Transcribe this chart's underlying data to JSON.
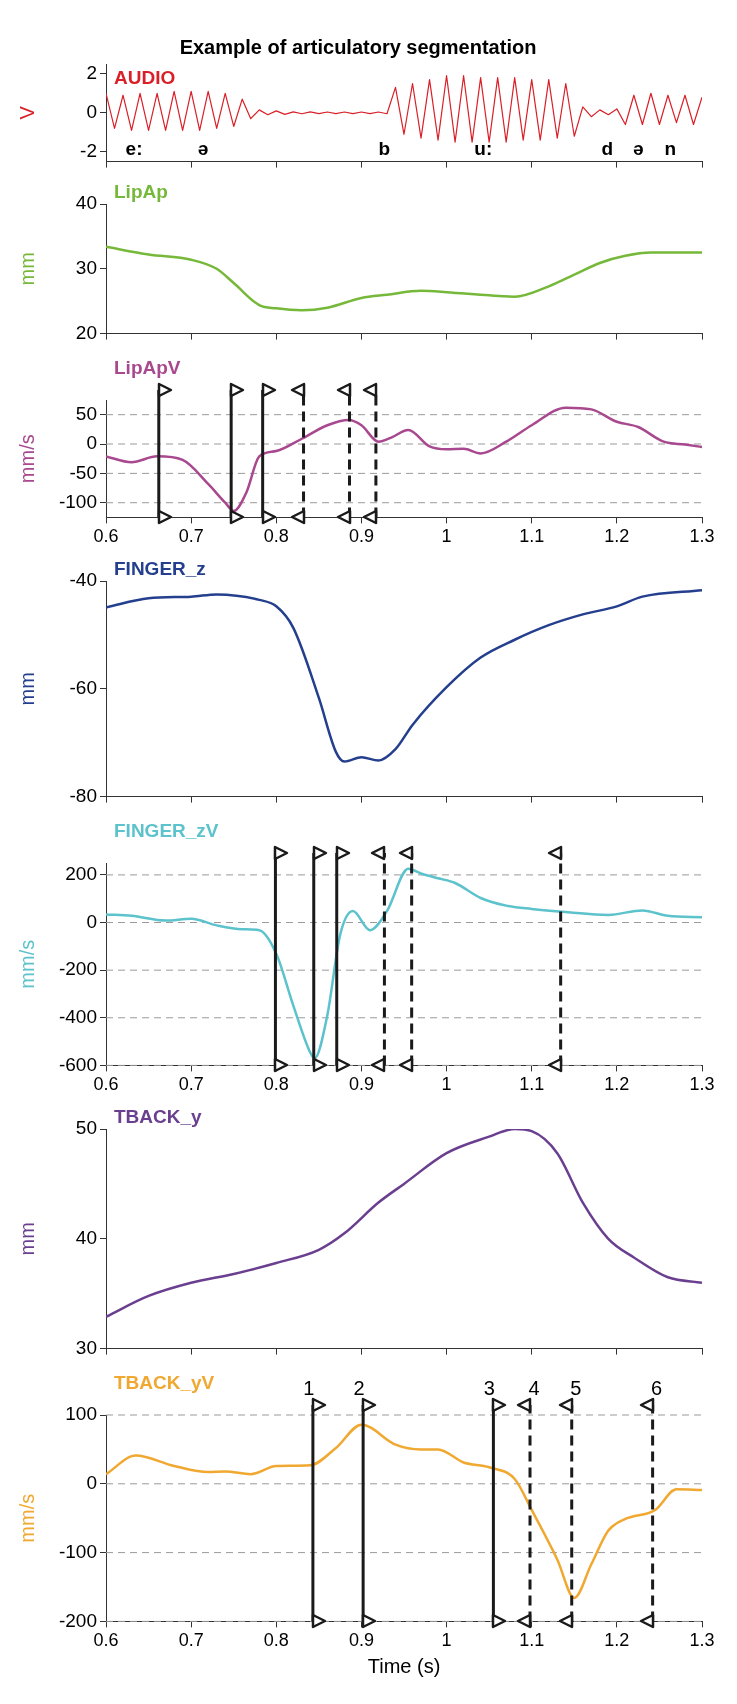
{
  "chart_data": [
    {
      "type": "line",
      "title": "Example of articulatory segmentation",
      "ylabel": "V",
      "tick_labels": "y",
      "grid": false,
      "legend": false,
      "x": [
        0.6,
        0.61,
        0.62,
        0.63,
        0.64,
        0.65,
        0.66,
        0.67,
        0.68,
        0.69,
        0.7,
        0.71,
        0.72,
        0.73,
        0.74,
        0.75,
        0.76,
        0.77,
        0.78,
        0.79,
        0.8,
        0.81,
        0.82,
        0.83,
        0.84,
        0.85,
        0.86,
        0.87,
        0.88,
        0.89,
        0.9,
        0.91,
        0.92,
        0.93,
        0.94,
        0.95,
        0.96,
        0.97,
        0.98,
        0.99,
        1.0,
        1.01,
        1.02,
        1.03,
        1.04,
        1.05,
        1.06,
        1.07,
        1.08,
        1.09,
        1.1,
        1.11,
        1.12,
        1.13,
        1.14,
        1.15,
        1.16,
        1.17,
        1.18,
        1.19,
        1.2,
        1.21,
        1.22,
        1.23,
        1.24,
        1.25,
        1.26,
        1.27,
        1.28,
        1.29,
        1.3
      ],
      "series": [
        {
          "name": "AUDIO",
          "color": "#d92028",
          "values": [
            1.0,
            -0.8,
            0.9,
            -0.9,
            1.0,
            -0.9,
            1.0,
            -0.9,
            1.1,
            -0.9,
            1.1,
            -0.9,
            1.1,
            -0.8,
            1.0,
            -0.7,
            0.7,
            -0.3,
            0.15,
            -0.1,
            0.1,
            -0.08,
            0.05,
            -0.05,
            0.05,
            -0.04,
            0.04,
            -0.04,
            0.04,
            -0.04,
            0.04,
            -0.04,
            0.04,
            -0.05,
            1.3,
            -1.1,
            1.5,
            -1.3,
            1.7,
            -1.4,
            1.9,
            -1.5,
            1.9,
            -1.5,
            1.8,
            -1.5,
            1.8,
            -1.5,
            1.8,
            -1.4,
            1.7,
            -1.4,
            1.7,
            -1.3,
            1.5,
            -1.2,
            0.3,
            -0.2,
            0.15,
            -0.1,
            0.2,
            -0.6,
            0.9,
            -0.6,
            1.0,
            -0.6,
            0.9,
            -0.5,
            0.9,
            -0.6,
            0.8
          ]
        }
      ],
      "xlim": [
        0.6,
        1.3
      ],
      "xticks": [
        0.6,
        0.7,
        0.8,
        0.9,
        1,
        1.1,
        1.2,
        1.3
      ],
      "ylim": [
        -2.5,
        2.5
      ],
      "yticks": [
        -2,
        0,
        2
      ],
      "annotations": [
        "e:",
        "ə",
        "b",
        "u:",
        "d",
        "ə",
        "n"
      ]
    },
    {
      "type": "line",
      "ylabel": "mm",
      "tick_labels": "y",
      "grid": false,
      "legend": false,
      "x": [
        0.6,
        0.65,
        0.7,
        0.73,
        0.75,
        0.78,
        0.8,
        0.83,
        0.86,
        0.9,
        0.93,
        0.97,
        1.0,
        1.05,
        1.08,
        1.12,
        1.15,
        1.18,
        1.21,
        1.24,
        1.3
      ],
      "series": [
        {
          "name": "LipAp",
          "color": "#76b83a",
          "values": [
            33.4,
            32.2,
            31.4,
            30.0,
            27.8,
            24.4,
            23.9,
            23.6,
            24.0,
            25.5,
            26.0,
            26.6,
            26.4,
            25.9,
            25.7,
            27.3,
            29.1,
            30.9,
            32.0,
            32.5,
            32.5
          ]
        }
      ],
      "xlim": [
        0.6,
        1.3
      ],
      "xticks": [
        0.6,
        0.7,
        0.8,
        0.9,
        1,
        1.1,
        1.2,
        1.3
      ],
      "ylim": [
        20,
        40
      ],
      "yticks": [
        20,
        30,
        40
      ]
    },
    {
      "type": "line",
      "ylabel": "mm/s",
      "grid": "y",
      "legend": false,
      "x": [
        0.6,
        0.63,
        0.66,
        0.69,
        0.72,
        0.74,
        0.75,
        0.765,
        0.78,
        0.8,
        0.83,
        0.86,
        0.885,
        0.9,
        0.92,
        0.935,
        0.955,
        0.98,
        1.0,
        1.02,
        1.04,
        1.07,
        1.1,
        1.14,
        1.17,
        1.2,
        1.225,
        1.255,
        1.28,
        1.3
      ],
      "series": [
        {
          "name": "LipApV",
          "color": "#a8488f",
          "values": [
            -21,
            -31,
            -21,
            -27,
            -68,
            -100,
            -114,
            -82,
            -21,
            -12,
            9,
            32,
            41,
            32,
            4,
            11,
            24,
            -4,
            -9,
            -8,
            -16,
            4,
            32,
            62,
            59,
            38,
            29,
            4,
            -1,
            -5
          ]
        }
      ],
      "xlim": [
        0.6,
        1.3
      ],
      "xticks": [
        0.6,
        0.7,
        0.8,
        0.9,
        1,
        1.1,
        1.2,
        1.3
      ],
      "ylim": [
        -125,
        75
      ],
      "yticks": [
        -100,
        -50,
        0,
        50
      ],
      "ref_lines": [
        {
          "axis": "x",
          "value": 0.662,
          "line_style": "solid"
        },
        {
          "axis": "x",
          "value": 0.747,
          "line_style": "solid"
        },
        {
          "axis": "x",
          "value": 0.784,
          "line_style": "solid"
        },
        {
          "axis": "x",
          "value": 0.832,
          "line_style": "dashed"
        },
        {
          "axis": "x",
          "value": 0.886,
          "line_style": "dashed"
        },
        {
          "axis": "x",
          "value": 0.917,
          "line_style": "dashed"
        }
      ]
    },
    {
      "type": "line",
      "ylabel": "mm",
      "tick_labels": "y",
      "grid": false,
      "legend": false,
      "x": [
        0.6,
        0.65,
        0.7,
        0.73,
        0.78,
        0.8,
        0.82,
        0.85,
        0.87,
        0.88,
        0.9,
        0.92,
        0.94,
        0.96,
        1.0,
        1.04,
        1.08,
        1.12,
        1.16,
        1.2,
        1.23,
        1.3
      ],
      "series": [
        {
          "name": "FINGER_z",
          "color": "#253f8f",
          "values": [
            -44.9,
            -43.2,
            -42.9,
            -42.5,
            -43.5,
            -44.7,
            -48.7,
            -61.7,
            -71.7,
            -73.5,
            -72.7,
            -73.3,
            -71.2,
            -66.7,
            -59.7,
            -54.2,
            -50.9,
            -48.2,
            -46.2,
            -44.7,
            -42.9,
            -41.7
          ]
        }
      ],
      "xlim": [
        0.6,
        1.3
      ],
      "xticks": [
        0.6,
        0.7,
        0.8,
        0.9,
        1,
        1.1,
        1.2,
        1.3
      ],
      "ylim": [
        -80,
        -40
      ],
      "yticks": [
        -80,
        -60,
        -40
      ]
    },
    {
      "type": "line",
      "ylabel": "mm/s",
      "grid": "y",
      "legend": false,
      "x": [
        0.6,
        0.63,
        0.67,
        0.7,
        0.73,
        0.76,
        0.78,
        0.8,
        0.82,
        0.84,
        0.845,
        0.86,
        0.875,
        0.89,
        0.91,
        0.93,
        0.955,
        0.97,
        0.99,
        1.01,
        1.04,
        1.07,
        1.1,
        1.14,
        1.19,
        1.23,
        1.26,
        1.3
      ],
      "series": [
        {
          "name": "FINGER_zV",
          "color": "#5cc2cc",
          "values": [
            34,
            28,
            8,
            16,
            -12,
            -28,
            -32,
            -131,
            -349,
            -547,
            -570,
            -388,
            -52,
            48,
            -32,
            48,
            226,
            206,
            186,
            166,
            103,
            71,
            57,
            44,
            32,
            51,
            28,
            22
          ]
        }
      ],
      "xlim": [
        0.6,
        1.3
      ],
      "xticks": [
        0.6,
        0.7,
        0.8,
        0.9,
        1,
        1.1,
        1.2,
        1.3
      ],
      "ylim": [
        -600,
        250
      ],
      "yticks": [
        -600,
        -400,
        -200,
        0,
        200
      ],
      "ref_lines": [
        {
          "axis": "x",
          "value": 0.799,
          "line_style": "solid"
        },
        {
          "axis": "x",
          "value": 0.844,
          "line_style": "solid"
        },
        {
          "axis": "x",
          "value": 0.871,
          "line_style": "solid"
        },
        {
          "axis": "x",
          "value": 0.927,
          "line_style": "dashed"
        },
        {
          "axis": "x",
          "value": 0.959,
          "line_style": "dashed"
        },
        {
          "axis": "x",
          "value": 1.134,
          "line_style": "dashed"
        }
      ]
    },
    {
      "type": "line",
      "ylabel": "mm",
      "tick_labels": "y",
      "grid": false,
      "legend": false,
      "x": [
        0.6,
        0.65,
        0.7,
        0.75,
        0.8,
        0.85,
        0.88,
        0.92,
        0.95,
        1.0,
        1.05,
        1.08,
        1.1,
        1.13,
        1.16,
        1.19,
        1.22,
        1.26,
        1.3
      ],
      "series": [
        {
          "name": "TBACK_y",
          "color": "#6b3f8f",
          "values": [
            32.9,
            34.8,
            36.0,
            36.8,
            37.8,
            39.0,
            40.5,
            43.3,
            45.0,
            47.8,
            49.3,
            50.0,
            49.8,
            47.8,
            43.3,
            40.0,
            38.3,
            36.5,
            36.0
          ]
        }
      ],
      "xlim": [
        0.6,
        1.3
      ],
      "xticks": [
        0.6,
        0.7,
        0.8,
        0.9,
        1,
        1.1,
        1.2,
        1.3
      ],
      "ylim": [
        30,
        50
      ],
      "yticks": [
        30,
        40,
        50
      ]
    },
    {
      "type": "line",
      "ylabel": "mm/s",
      "xlabel": "Time (s)",
      "grid": "y",
      "legend": false,
      "x": [
        0.6,
        0.635,
        0.68,
        0.72,
        0.74,
        0.77,
        0.8,
        0.84,
        0.87,
        0.9,
        0.94,
        0.97,
        0.99,
        1.02,
        1.05,
        1.08,
        1.1,
        1.13,
        1.15,
        1.17,
        1.19,
        1.21,
        1.245,
        1.27,
        1.3
      ],
      "series": [
        {
          "name": "TBACK_yV",
          "color": "#f0a830",
          "values": [
            14,
            41,
            26,
            17,
            18,
            14,
            26,
            27,
            52,
            86,
            57,
            50,
            50,
            31,
            24,
            7,
            -38,
            -110,
            -166,
            -117,
            -68,
            -51,
            -38,
            -8,
            -9
          ]
        }
      ],
      "xlim": [
        0.6,
        1.3
      ],
      "xticks": [
        0.6,
        0.7,
        0.8,
        0.9,
        1,
        1.1,
        1.2,
        1.3
      ],
      "ylim": [
        -200,
        100
      ],
      "yticks": [
        -200,
        -100,
        0,
        100
      ],
      "ref_lines": [
        {
          "axis": "x",
          "value": 0.843,
          "line_style": "solid"
        },
        {
          "axis": "x",
          "value": 0.902,
          "line_style": "solid"
        },
        {
          "axis": "x",
          "value": 1.055,
          "line_style": "solid"
        },
        {
          "axis": "x",
          "value": 1.098,
          "line_style": "dashed"
        },
        {
          "axis": "x",
          "value": 1.147,
          "line_style": "dashed"
        },
        {
          "axis": "x",
          "value": 1.242,
          "line_style": "dashed"
        }
      ],
      "annotations": [
        "1",
        "2",
        "3",
        "4",
        "5",
        "6"
      ]
    }
  ]
}
